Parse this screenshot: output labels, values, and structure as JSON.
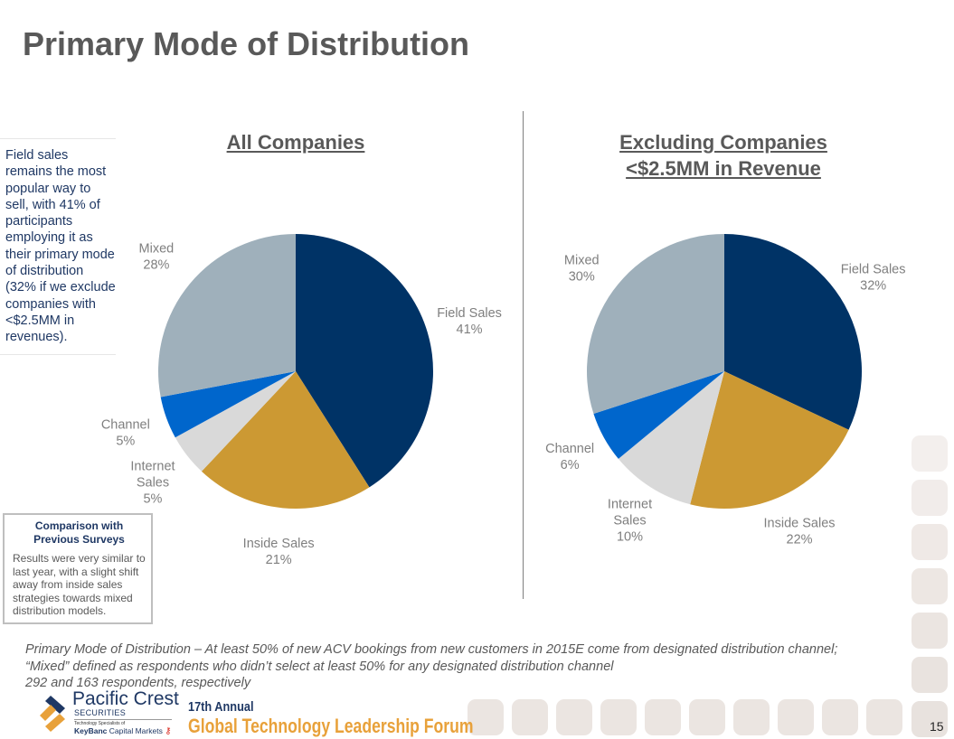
{
  "page": {
    "title": "Primary Mode of Distribution",
    "page_number": "15"
  },
  "side_note": "Field sales remains the most popular way to sell, with 41% of participants employing it as their primary mode of distribution (32% if we exclude companies with <$2.5MM in revenues).",
  "comparison_box": {
    "title_line1": "Comparison with",
    "title_line2": "Previous Surveys",
    "body": "Results were very similar to last year, with a slight shift away from inside sales strategies towards mixed distribution models."
  },
  "footnote": {
    "line1": "Primary Mode of Distribution – At least 50% of new ACV bookings from new customers in 2015E come from designated distribution channel;",
    "line2": "“Mixed” defined as respondents who didn’t select at least 50% for any designated distribution channel",
    "line3": "292 and 163 respondents, respectively"
  },
  "branding": {
    "company": "Pacific Crest",
    "company_sub": "SECURITIES",
    "tagline": "Technology Specialists of",
    "parent": "KeyBanc",
    "parent_rest": "Capital Markets",
    "event_line1": "17th Annual",
    "event_line2": "Global Technology Leadership Forum"
  },
  "colors": {
    "Field Sales": "#003366",
    "Inside Sales": "#cc9933",
    "Internet Sales": "#d9d9d9",
    "Channel": "#0066cc",
    "Mixed": "#9fb0bb"
  },
  "chart_data": [
    {
      "type": "pie",
      "title": "All Companies",
      "categories": [
        "Field Sales",
        "Inside Sales",
        "Internet Sales",
        "Channel",
        "Mixed"
      ],
      "values": [
        41,
        21,
        5,
        5,
        28
      ],
      "labels": [
        [
          "Field Sales",
          "41%"
        ],
        [
          "Inside Sales",
          "21%"
        ],
        [
          "Internet",
          "Sales",
          "5%"
        ],
        [
          "Channel",
          "5%"
        ],
        [
          "Mixed",
          "28%"
        ]
      ],
      "start": "12 o'clock, clockwise"
    },
    {
      "type": "pie",
      "title": "Excluding Companies <$2.5MM in Revenue",
      "title_line1": "Excluding Companies",
      "title_line2": "<$2.5MM in Revenue",
      "categories": [
        "Field Sales",
        "Inside Sales",
        "Internet Sales",
        "Channel",
        "Mixed"
      ],
      "values": [
        32,
        22,
        10,
        6,
        30
      ],
      "labels": [
        [
          "Field Sales",
          "32%"
        ],
        [
          "Inside Sales",
          "22%"
        ],
        [
          "Internet",
          "Sales",
          "10%"
        ],
        [
          "Channel",
          "6%"
        ],
        [
          "Mixed",
          "30%"
        ]
      ],
      "start": "12 o'clock, clockwise"
    }
  ]
}
